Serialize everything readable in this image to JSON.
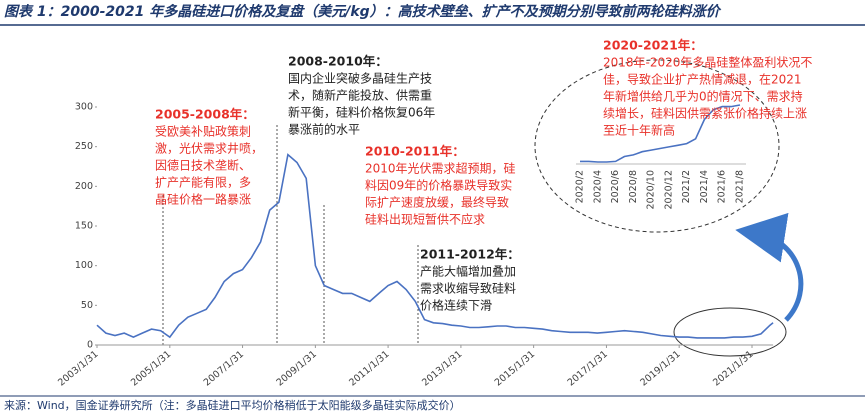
{
  "header": {
    "title": "图表 1：2000-2021 年多晶硅进口价格及复盘（美元/kg）：高技术壁垒、扩产不及预期分别导致前两轮硅料涨价"
  },
  "chart_data": [
    {
      "type": "line",
      "color": "#4a72c2",
      "xlim": [
        "2003/1/31",
        "2021/8/31"
      ],
      "xticks": [
        "2003/1/31",
        "2005/1/31",
        "2007/1/31",
        "2009/1/31",
        "2011/1/31",
        "2013/1/31",
        "2015/1/31",
        "2017/1/31",
        "2019/1/31",
        "2021/1/31"
      ],
      "ylim": [
        0,
        300
      ],
      "yticks": [
        0,
        50,
        100,
        150,
        200,
        250,
        300
      ],
      "x": [
        "2003/1/31",
        "2003/4/30",
        "2003/7/31",
        "2003/10/31",
        "2004/1/31",
        "2004/4/30",
        "2004/7/31",
        "2004/10/31",
        "2005/1/31",
        "2005/4/30",
        "2005/7/31",
        "2005/10/31",
        "2006/1/31",
        "2006/4/30",
        "2006/7/31",
        "2006/10/31",
        "2007/1/31",
        "2007/4/30",
        "2007/7/31",
        "2007/10/31",
        "2008/1/31",
        "2008/4/30",
        "2008/7/31",
        "2008/10/31",
        "2009/1/31",
        "2009/4/30",
        "2009/7/31",
        "2009/10/31",
        "2010/1/31",
        "2010/4/30",
        "2010/7/31",
        "2010/10/31",
        "2011/1/31",
        "2011/4/30",
        "2011/7/31",
        "2011/10/31",
        "2012/1/31",
        "2012/4/30",
        "2012/7/31",
        "2012/10/31",
        "2013/1/31",
        "2013/4/30",
        "2013/7/31",
        "2013/10/31",
        "2014/1/31",
        "2014/4/30",
        "2014/7/31",
        "2014/10/31",
        "2015/1/31",
        "2015/4/30",
        "2015/7/31",
        "2015/10/31",
        "2016/1/31",
        "2016/4/30",
        "2016/7/31",
        "2016/10/31",
        "2017/1/31",
        "2017/4/30",
        "2017/7/31",
        "2017/10/31",
        "2018/1/31",
        "2018/4/30",
        "2018/7/31",
        "2018/10/31",
        "2019/1/31",
        "2019/4/30",
        "2019/7/31",
        "2019/10/31",
        "2020/1/31",
        "2020/4/30",
        "2020/7/31",
        "2020/10/31",
        "2021/1/31",
        "2021/4/30",
        "2021/7/31",
        "2021/8/31"
      ],
      "values": [
        25,
        15,
        12,
        15,
        10,
        15,
        20,
        18,
        10,
        25,
        35,
        40,
        45,
        60,
        80,
        90,
        95,
        110,
        130,
        170,
        180,
        240,
        230,
        210,
        100,
        75,
        70,
        65,
        65,
        60,
        55,
        65,
        75,
        80,
        70,
        55,
        32,
        28,
        27,
        25,
        24,
        22,
        22,
        23,
        24,
        24,
        22,
        22,
        21,
        20,
        18,
        17,
        16,
        16,
        16,
        15,
        16,
        17,
        18,
        17,
        16,
        14,
        12,
        11,
        10,
        10,
        9,
        9,
        9,
        9,
        10,
        10,
        11,
        14,
        25,
        28
      ]
    },
    {
      "type": "line",
      "color": "#4a72c2",
      "categories": [
        "2020/2",
        null,
        "2020/4",
        null,
        "2020/6",
        null,
        "2020/8",
        null,
        "2020/10",
        null,
        "2020/12",
        null,
        "2021/2",
        null,
        "2021/4",
        null,
        "2021/6",
        null,
        "2021/8"
      ],
      "values": [
        9,
        9,
        8.8,
        8.8,
        9,
        10.5,
        11,
        12,
        12.5,
        13,
        13.5,
        14,
        14.5,
        16,
        22,
        25,
        26,
        26,
        26.5
      ]
    }
  ],
  "annotations": [
    {
      "heading": "2005-2008年：",
      "color": "#e8312a",
      "lines": [
        "受欧美补贴政策刺",
        "激，光伏需求井喷，",
        "因德日技术垄断、",
        "扩产产能有限，多",
        "晶硅价格一路暴涨"
      ]
    },
    {
      "heading": "2008-2010年：",
      "color": "#222222",
      "lines": [
        "国内企业突破多晶硅生产技",
        "术，随新产能投放、供需重",
        "新平衡，硅料价格恢复06年",
        "暴涨前的水平"
      ]
    },
    {
      "heading": "2010-2011年：",
      "color": "#e8312a",
      "lines": [
        "2010年光伏需求超预期，硅",
        "料因09年的价格暴跌导致实",
        "际扩产速度放缓，最终导致",
        "硅料出现短暂供不应求"
      ]
    },
    {
      "heading": "2011-2012年：",
      "color": "#222222",
      "lines": [
        "产能大幅增加叠加",
        "需求收缩导致硅料",
        "价格连续下滑"
      ]
    },
    {
      "heading": "2020-2021年：",
      "color": "#e8312a",
      "lines": [
        "2018年-2020年多晶硅整体盈利状况不",
        "佳，导致企业扩产热情减退，在2021",
        "年新增供给几乎为0的情况下、需求持",
        "续增长，硅料因供需紧张价格持续上涨",
        "至近十年新高"
      ]
    }
  ],
  "footer": {
    "source": "来源：Wind，国金证券研究所（注：多晶硅进口平均价格稍低于太阳能级多晶硅实际成交价）"
  }
}
